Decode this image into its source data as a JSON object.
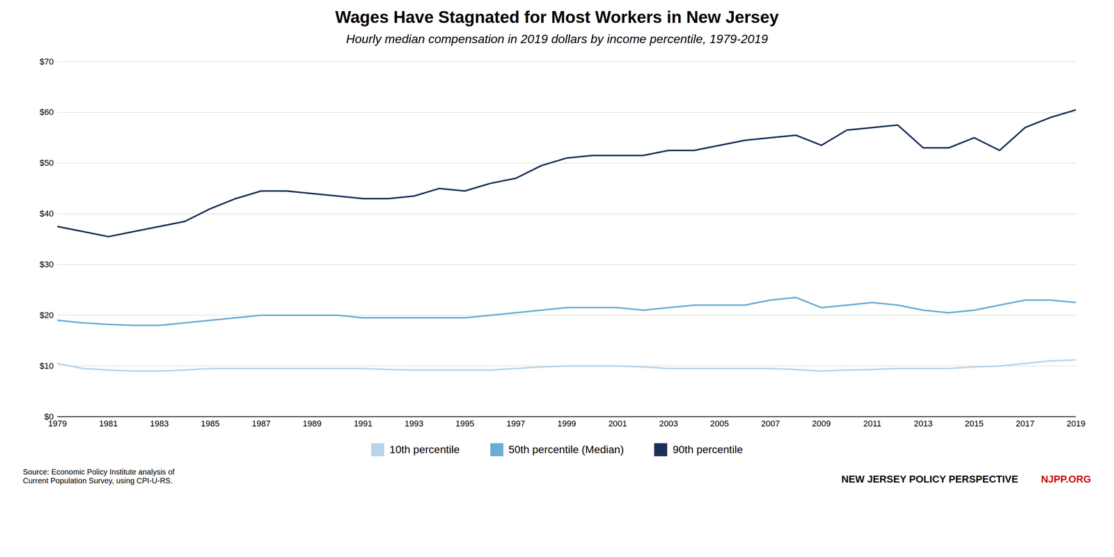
{
  "chart_data": {
    "type": "line",
    "title": "Wages Have Stagnated for Most Workers in New Jersey",
    "subtitle": "Hourly median compensation in 2019 dollars by income percentile, 1979-2019",
    "annotations": [
      {
        "text": "Source: Economic Policy Institute analysis of\nCurrent Population Survey, using CPI-U-RS."
      },
      {
        "text": "NEW JERSEY POLICY PERSPECTIVE"
      },
      {
        "text": "NJPP.ORG",
        "color": "#cc0000"
      }
    ],
    "x": [
      1979,
      1980,
      1981,
      1982,
      1983,
      1984,
      1985,
      1986,
      1987,
      1988,
      1989,
      1990,
      1991,
      1992,
      1993,
      1994,
      1995,
      1996,
      1997,
      1998,
      1999,
      2000,
      2001,
      2002,
      2003,
      2004,
      2005,
      2006,
      2007,
      2008,
      2009,
      2010,
      2011,
      2012,
      2013,
      2014,
      2015,
      2016,
      2017,
      2018,
      2019
    ],
    "series": [
      {
        "name": "10th percentile",
        "color": "#b8d4e8",
        "values": [
          10.5,
          9.5,
          9.2,
          9.0,
          9.0,
          9.2,
          9.5,
          9.5,
          9.5,
          9.5,
          9.5,
          9.5,
          9.5,
          9.3,
          9.2,
          9.2,
          9.2,
          9.2,
          9.5,
          9.8,
          10.0,
          10.0,
          10.0,
          9.8,
          9.5,
          9.5,
          9.5,
          9.5,
          9.5,
          9.3,
          9.0,
          9.2,
          9.3,
          9.5,
          9.5,
          9.5,
          9.8,
          10.0,
          10.5,
          11.0,
          11.2
        ]
      },
      {
        "name": "50th percentile (Median)",
        "color": "#6aadd5",
        "values": [
          19.0,
          18.5,
          18.2,
          18.0,
          18.0,
          18.5,
          19.0,
          19.5,
          20.0,
          20.0,
          20.0,
          20.0,
          19.5,
          19.5,
          19.5,
          19.5,
          19.5,
          20.0,
          20.5,
          21.0,
          21.5,
          21.5,
          21.5,
          21.0,
          21.5,
          22.0,
          22.0,
          22.0,
          23.0,
          23.5,
          21.5,
          22.0,
          22.5,
          22.0,
          21.0,
          20.5,
          21.0,
          22.0,
          23.0,
          23.0,
          22.5
        ]
      },
      {
        "name": "90th percentile",
        "color": "#1a2f5a",
        "values": [
          37.5,
          36.5,
          35.5,
          36.5,
          37.5,
          38.5,
          41.0,
          43.0,
          44.5,
          44.5,
          44.0,
          43.5,
          43.0,
          43.0,
          43.5,
          45.0,
          44.5,
          46.0,
          47.0,
          49.5,
          51.0,
          51.5,
          51.5,
          51.5,
          52.5,
          52.5,
          53.5,
          54.5,
          55.0,
          55.5,
          53.5,
          56.5,
          57.0,
          57.5,
          53.0,
          53.0,
          55.0,
          52.5,
          57.0,
          59.0,
          60.5
        ]
      }
    ],
    "xlim": [
      1979,
      2019
    ],
    "xticks": [
      1979,
      1981,
      1983,
      1985,
      1987,
      1989,
      1991,
      1993,
      1995,
      1997,
      1999,
      2001,
      2003,
      2005,
      2007,
      2009,
      2011,
      2013,
      2015,
      2017,
      2019
    ],
    "ylim": [
      0,
      70
    ],
    "yticks": [
      {
        "value": 0,
        "label": "$0"
      },
      {
        "value": 10,
        "label": "$10"
      },
      {
        "value": 20,
        "label": "$20"
      },
      {
        "value": 30,
        "label": "$30"
      },
      {
        "value": 40,
        "label": "$40"
      },
      {
        "value": 50,
        "label": "$50"
      },
      {
        "value": 60,
        "label": "$60"
      },
      {
        "value": 70,
        "label": "$70"
      }
    ],
    "grid": "y",
    "legend": "bottom"
  }
}
